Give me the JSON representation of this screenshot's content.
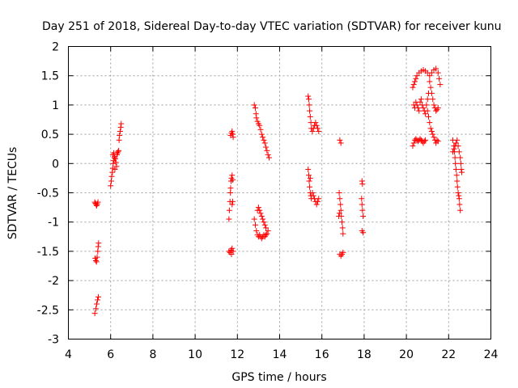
{
  "chart_data": {
    "type": "scatter",
    "title": "Day 251 of 2018, Sidereal Day-to-day VTEC variation (SDTVAR) for receiver kunu",
    "xlabel": "GPS time / hours",
    "ylabel": "SDTVAR / TECUs",
    "xlim": [
      4,
      24
    ],
    "ylim": [
      -3,
      2
    ],
    "xticks": [
      4,
      6,
      8,
      10,
      12,
      14,
      16,
      18,
      20,
      22,
      24
    ],
    "yticks": [
      -3,
      -2.5,
      -2,
      -1.5,
      -1,
      -0.5,
      0,
      0.5,
      1,
      1.5,
      2
    ],
    "xtick_labels": [
      "4",
      "6",
      "8",
      "10",
      "12",
      "14",
      "16",
      "18",
      "20",
      "22",
      "24"
    ],
    "ytick_labels": [
      "-3",
      "-2.5",
      "-2",
      "-1.5",
      "-1",
      "-0.5",
      "0",
      "0.5",
      "1",
      "1.5",
      "2"
    ],
    "grid": true,
    "marker": "+",
    "color": "#ff0000",
    "series": [
      {
        "name": "SDTVAR",
        "points": [
          [
            5.25,
            -0.66
          ],
          [
            5.28,
            -0.68
          ],
          [
            5.31,
            -0.7
          ],
          [
            5.34,
            -0.72
          ],
          [
            5.37,
            -0.69
          ],
          [
            5.4,
            -0.66
          ],
          [
            5.27,
            -1.62
          ],
          [
            5.3,
            -1.66
          ],
          [
            5.33,
            -1.68
          ],
          [
            5.36,
            -1.6
          ],
          [
            5.39,
            -1.5
          ],
          [
            5.41,
            -1.42
          ],
          [
            5.43,
            -1.36
          ],
          [
            5.25,
            -2.56
          ],
          [
            5.3,
            -2.48
          ],
          [
            5.34,
            -2.4
          ],
          [
            5.38,
            -2.33
          ],
          [
            5.42,
            -2.28
          ],
          [
            6.0,
            -0.38
          ],
          [
            6.03,
            -0.3
          ],
          [
            6.05,
            -0.22
          ],
          [
            6.08,
            -0.15
          ],
          [
            6.1,
            -0.08
          ],
          [
            6.12,
            0.0
          ],
          [
            6.15,
            0.05
          ],
          [
            6.18,
            0.1
          ],
          [
            6.2,
            0.12
          ],
          [
            6.22,
            0.08
          ],
          [
            6.25,
            0.02
          ],
          [
            6.28,
            -0.05
          ],
          [
            6.3,
            0.15
          ],
          [
            6.32,
            0.18
          ],
          [
            6.35,
            0.2
          ],
          [
            6.38,
            0.22
          ],
          [
            6.4,
            0.4
          ],
          [
            6.42,
            0.48
          ],
          [
            6.45,
            0.55
          ],
          [
            6.48,
            0.62
          ],
          [
            6.5,
            0.68
          ],
          [
            6.1,
            0.15
          ],
          [
            6.2,
            -0.1
          ],
          [
            6.15,
            0.18
          ],
          [
            11.6,
            -0.95
          ],
          [
            11.62,
            -0.8
          ],
          [
            11.65,
            -0.65
          ],
          [
            11.67,
            -0.5
          ],
          [
            11.68,
            -0.42
          ],
          [
            11.7,
            -0.3
          ],
          [
            11.72,
            -0.25
          ],
          [
            11.75,
            -0.2
          ],
          [
            11.78,
            -0.28
          ],
          [
            11.68,
            0.48
          ],
          [
            11.72,
            0.52
          ],
          [
            11.75,
            0.55
          ],
          [
            11.78,
            0.5
          ],
          [
            11.8,
            0.45
          ],
          [
            11.6,
            -1.5
          ],
          [
            11.65,
            -1.52
          ],
          [
            11.7,
            -1.48
          ],
          [
            11.75,
            -1.45
          ],
          [
            11.8,
            -1.5
          ],
          [
            11.72,
            -1.55
          ],
          [
            11.75,
            -0.7
          ],
          [
            11.78,
            -0.65
          ],
          [
            12.8,
            1.0
          ],
          [
            12.85,
            0.95
          ],
          [
            12.88,
            0.85
          ],
          [
            12.9,
            0.78
          ],
          [
            12.95,
            0.72
          ],
          [
            13.0,
            0.68
          ],
          [
            13.05,
            0.65
          ],
          [
            13.1,
            0.58
          ],
          [
            13.15,
            0.5
          ],
          [
            13.2,
            0.45
          ],
          [
            13.25,
            0.4
          ],
          [
            13.3,
            0.35
          ],
          [
            13.35,
            0.28
          ],
          [
            13.4,
            0.22
          ],
          [
            13.45,
            0.15
          ],
          [
            13.5,
            0.1
          ],
          [
            12.8,
            -0.95
          ],
          [
            12.85,
            -1.05
          ],
          [
            12.9,
            -1.15
          ],
          [
            12.95,
            -1.22
          ],
          [
            13.0,
            -1.25
          ],
          [
            13.05,
            -1.22
          ],
          [
            13.1,
            -1.25
          ],
          [
            13.15,
            -1.28
          ],
          [
            13.2,
            -1.25
          ],
          [
            13.25,
            -1.22
          ],
          [
            13.3,
            -1.25
          ],
          [
            13.35,
            -1.22
          ],
          [
            13.4,
            -1.2
          ],
          [
            13.45,
            -1.15
          ],
          [
            12.95,
            -0.8
          ],
          [
            13.0,
            -0.75
          ],
          [
            13.05,
            -0.8
          ],
          [
            13.1,
            -0.85
          ],
          [
            13.15,
            -0.9
          ],
          [
            13.2,
            -0.95
          ],
          [
            13.25,
            -1.0
          ],
          [
            13.3,
            -1.05
          ],
          [
            13.35,
            -1.1
          ],
          [
            15.35,
            1.15
          ],
          [
            15.38,
            1.1
          ],
          [
            15.4,
            1.0
          ],
          [
            15.42,
            0.9
          ],
          [
            15.45,
            0.8
          ],
          [
            15.48,
            0.7
          ],
          [
            15.5,
            0.6
          ],
          [
            15.55,
            0.55
          ],
          [
            15.6,
            0.6
          ],
          [
            15.65,
            0.65
          ],
          [
            15.7,
            0.7
          ],
          [
            15.75,
            0.65
          ],
          [
            15.8,
            0.6
          ],
          [
            15.85,
            0.55
          ],
          [
            15.35,
            -0.1
          ],
          [
            15.38,
            -0.2
          ],
          [
            15.4,
            -0.3
          ],
          [
            15.42,
            -0.4
          ],
          [
            15.45,
            -0.5
          ],
          [
            15.48,
            -0.55
          ],
          [
            15.5,
            -0.6
          ],
          [
            15.55,
            -0.5
          ],
          [
            15.6,
            -0.55
          ],
          [
            15.65,
            -0.6
          ],
          [
            15.7,
            -0.65
          ],
          [
            15.75,
            -0.7
          ],
          [
            15.8,
            -0.65
          ],
          [
            15.85,
            -0.6
          ],
          [
            15.45,
            -0.25
          ],
          [
            16.85,
            0.4
          ],
          [
            16.9,
            0.35
          ],
          [
            16.82,
            -0.5
          ],
          [
            16.85,
            -0.6
          ],
          [
            16.88,
            -0.7
          ],
          [
            16.9,
            -0.8
          ],
          [
            16.92,
            -0.9
          ],
          [
            16.95,
            -1.0
          ],
          [
            16.98,
            -1.1
          ],
          [
            17.0,
            -1.2
          ],
          [
            16.8,
            -0.9
          ],
          [
            16.83,
            -0.85
          ],
          [
            16.85,
            -1.55
          ],
          [
            16.9,
            -1.58
          ],
          [
            16.95,
            -1.55
          ],
          [
            17.0,
            -1.52
          ],
          [
            17.9,
            -0.3
          ],
          [
            17.92,
            -0.35
          ],
          [
            17.88,
            -0.6
          ],
          [
            17.9,
            -0.7
          ],
          [
            17.92,
            -0.8
          ],
          [
            17.95,
            -0.9
          ],
          [
            17.9,
            -1.15
          ],
          [
            17.95,
            -1.18
          ],
          [
            20.3,
            1.3
          ],
          [
            20.35,
            1.35
          ],
          [
            20.4,
            1.4
          ],
          [
            20.45,
            1.45
          ],
          [
            20.5,
            1.5
          ],
          [
            20.6,
            1.55
          ],
          [
            20.7,
            1.58
          ],
          [
            20.8,
            1.6
          ],
          [
            20.9,
            1.58
          ],
          [
            21.0,
            1.55
          ],
          [
            21.1,
            1.5
          ],
          [
            21.2,
            1.55
          ],
          [
            21.3,
            1.6
          ],
          [
            21.4,
            1.62
          ],
          [
            21.5,
            1.55
          ],
          [
            21.55,
            1.45
          ],
          [
            21.6,
            1.35
          ],
          [
            20.35,
            1.0
          ],
          [
            20.4,
            0.95
          ],
          [
            20.45,
            1.05
          ],
          [
            20.5,
            1.0
          ],
          [
            20.55,
            0.95
          ],
          [
            20.6,
            0.9
          ],
          [
            20.65,
            1.05
          ],
          [
            20.7,
            1.1
          ],
          [
            20.75,
            1.0
          ],
          [
            20.8,
            0.95
          ],
          [
            20.85,
            0.9
          ],
          [
            20.9,
            0.85
          ],
          [
            20.95,
            1.0
          ],
          [
            21.0,
            1.1
          ],
          [
            21.05,
            1.2
          ],
          [
            20.3,
            0.3
          ],
          [
            20.35,
            0.35
          ],
          [
            20.4,
            0.4
          ],
          [
            20.45,
            0.42
          ],
          [
            20.5,
            0.4
          ],
          [
            20.55,
            0.38
          ],
          [
            20.6,
            0.4
          ],
          [
            20.65,
            0.42
          ],
          [
            20.7,
            0.4
          ],
          [
            20.75,
            0.38
          ],
          [
            20.8,
            0.35
          ],
          [
            20.85,
            0.38
          ],
          [
            20.9,
            0.4
          ],
          [
            21.0,
            0.9
          ],
          [
            21.05,
            0.8
          ],
          [
            21.1,
            0.7
          ],
          [
            21.15,
            0.6
          ],
          [
            21.2,
            0.55
          ],
          [
            21.25,
            0.5
          ],
          [
            21.3,
            0.45
          ],
          [
            21.35,
            0.4
          ],
          [
            21.4,
            0.35
          ],
          [
            21.45,
            0.4
          ],
          [
            21.5,
            0.38
          ],
          [
            21.1,
            1.4
          ],
          [
            21.15,
            1.3
          ],
          [
            21.2,
            1.2
          ],
          [
            21.25,
            1.1
          ],
          [
            21.3,
            1.0
          ],
          [
            21.35,
            0.95
          ],
          [
            21.4,
            0.9
          ],
          [
            21.45,
            0.92
          ],
          [
            21.5,
            0.95
          ],
          [
            22.2,
            0.4
          ],
          [
            22.25,
            0.3
          ],
          [
            22.28,
            0.2
          ],
          [
            22.3,
            0.1
          ],
          [
            22.32,
            0.0
          ],
          [
            22.35,
            -0.1
          ],
          [
            22.38,
            -0.2
          ],
          [
            22.4,
            -0.3
          ],
          [
            22.42,
            -0.4
          ],
          [
            22.45,
            -0.5
          ],
          [
            22.48,
            -0.55
          ],
          [
            22.5,
            -0.6
          ],
          [
            22.52,
            -0.7
          ],
          [
            22.55,
            -0.8
          ],
          [
            22.2,
            0.2
          ],
          [
            22.25,
            0.25
          ],
          [
            22.3,
            0.3
          ],
          [
            22.35,
            0.35
          ],
          [
            22.4,
            0.4
          ],
          [
            22.45,
            0.3
          ],
          [
            22.5,
            0.2
          ],
          [
            22.55,
            0.1
          ],
          [
            22.58,
            0.0
          ],
          [
            22.6,
            -0.1
          ],
          [
            22.62,
            -0.15
          ]
        ]
      }
    ]
  }
}
